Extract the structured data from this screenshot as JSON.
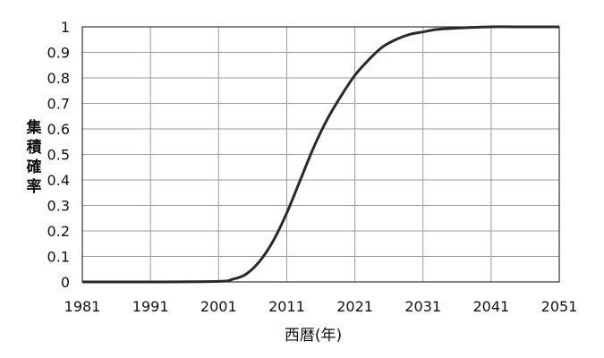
{
  "chart_data": {
    "type": "line",
    "xlabel": "西暦(年)",
    "ylabel_chars": [
      "集",
      "積",
      "確",
      "率"
    ],
    "xlim": [
      1981,
      2051
    ],
    "ylim": [
      0,
      1
    ],
    "x_ticks": [
      1981,
      1991,
      2001,
      2011,
      2021,
      2031,
      2041,
      2051
    ],
    "x_tick_labels": [
      "1981",
      "1991",
      "2001",
      "2011",
      "2021",
      "2031",
      "2041",
      "2051"
    ],
    "y_ticks": [
      0,
      0.1,
      0.2,
      0.3,
      0.4,
      0.5,
      0.6,
      0.7,
      0.8,
      0.9,
      1
    ],
    "y_tick_labels": [
      "0",
      "0.1",
      "0.2",
      "0.3",
      "0.4",
      "0.5",
      "0.6",
      "0.7",
      "0.8",
      "0.9",
      "1"
    ],
    "grid": true,
    "series": [
      {
        "x": [
          1981,
          1991,
          2001,
          2003,
          2005,
          2007,
          2009,
          2011,
          2013,
          2015,
          2017,
          2019,
          2021,
          2023,
          2025,
          2027,
          2029,
          2031,
          2033,
          2036,
          2041,
          2046,
          2051
        ],
        "y": [
          0,
          0,
          0.002,
          0.01,
          0.03,
          0.08,
          0.16,
          0.27,
          0.4,
          0.53,
          0.64,
          0.73,
          0.81,
          0.87,
          0.92,
          0.95,
          0.97,
          0.98,
          0.99,
          0.995,
          1.0,
          1.0,
          1.0
        ]
      }
    ]
  }
}
